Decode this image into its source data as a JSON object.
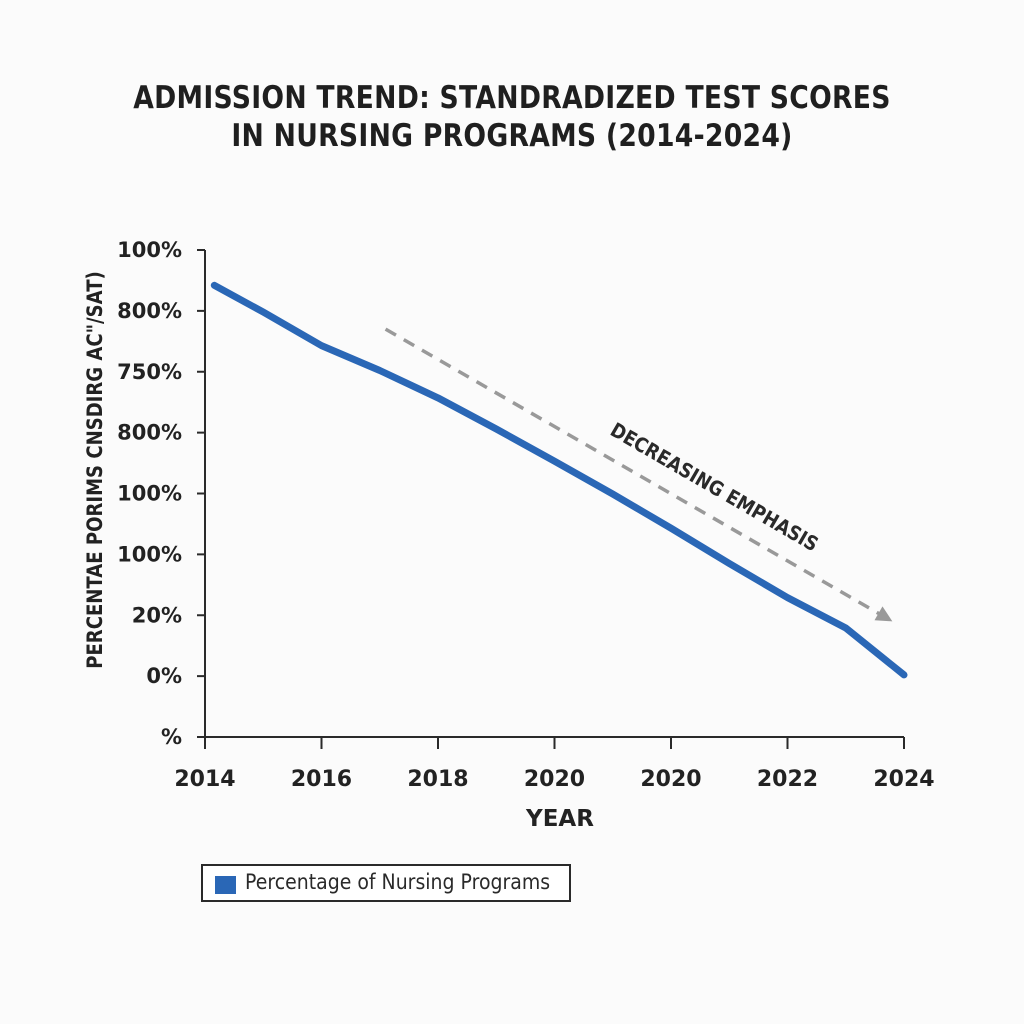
{
  "chart_data": {
    "type": "line",
    "title_lines": [
      "ADMISSION TREND: STANDRADIZED TEST SCORES",
      "IN NURSING PROGRAMS (2014-2024)"
    ],
    "xlabel": "YEAR",
    "ylabel": "PERCENTAE PORIMS CNSDIRG AC\"/SAT)",
    "x_tick_labels": [
      "2014",
      "2016",
      "2018",
      "2020",
      "2020",
      "2022",
      "2024"
    ],
    "y_tick_labels": [
      "100%",
      "800%",
      "750%",
      "800%",
      "100%",
      "100%",
      "20%",
      "0%",
      "%"
    ],
    "x_range": [
      0,
      6
    ],
    "y_range": [
      0,
      8
    ],
    "series": [
      {
        "name": "Percentage of Nursing Programs",
        "color": "#2a67b6",
        "x": [
          0.08,
          0.5,
          1.0,
          1.5,
          2.0,
          2.5,
          3.0,
          3.5,
          4.0,
          4.5,
          5.0,
          5.5,
          6.0
        ],
        "y": [
          7.42,
          6.98,
          6.43,
          6.02,
          5.57,
          5.06,
          4.53,
          3.99,
          3.43,
          2.85,
          2.29,
          1.79,
          1.02
        ]
      }
    ],
    "annotations": [
      {
        "text": "DECREASING EMPHASIS",
        "from": [
          1.55,
          6.7
        ],
        "to": [
          5.9,
          1.9
        ],
        "color": "#999999"
      }
    ],
    "grid": false,
    "legend_position": "bottom-left"
  }
}
